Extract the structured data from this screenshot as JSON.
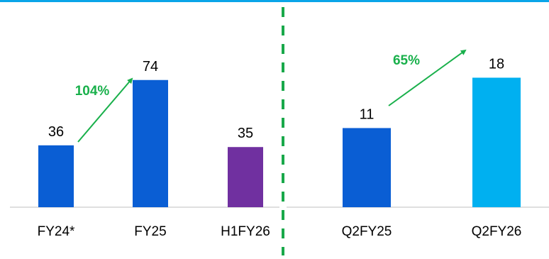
{
  "colors": {
    "top_rule": "#0aa5e8",
    "bar_blue": "#0a5ed4",
    "bar_purple": "#7030a0",
    "bar_light_blue": "#00b0f0",
    "growth_green": "#19b04b",
    "divider_green": "#19a84a",
    "axis": "#bfbfbf",
    "text": "#000000"
  },
  "chart_data": [
    {
      "type": "bar",
      "categories": [
        "FY24*",
        "FY25",
        "H1FY26"
      ],
      "values": [
        36,
        74,
        35
      ],
      "data_labels": [
        "36",
        "74",
        "35"
      ],
      "bar_colors": [
        "#0a5ed4",
        "#0a5ed4",
        "#7030a0"
      ],
      "ylim": [
        0,
        90
      ],
      "grid": false,
      "annotations": [
        {
          "text": "104%",
          "from": "FY24*",
          "to": "FY25",
          "style": "arrow",
          "color": "#19b04b"
        }
      ]
    },
    {
      "type": "bar",
      "categories": [
        "Q2FY25",
        "Q2FY26"
      ],
      "values": [
        11,
        18
      ],
      "data_labels": [
        "11",
        "18"
      ],
      "bar_colors": [
        "#0a5ed4",
        "#00b0f0"
      ],
      "ylim": [
        0,
        21.5
      ],
      "grid": false,
      "annotations": [
        {
          "text": "65%",
          "from": "Q2FY25",
          "to": "Q2FY26",
          "style": "arrow",
          "color": "#19b04b"
        }
      ]
    }
  ]
}
